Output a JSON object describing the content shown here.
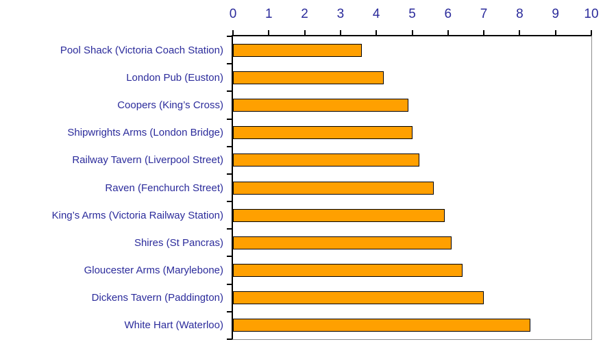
{
  "chart_data": {
    "type": "bar",
    "orientation": "horizontal",
    "title": "",
    "xlabel": "",
    "ylabel": "",
    "axis_position": "top",
    "grid": false,
    "legend": false,
    "xlim": [
      0,
      10
    ],
    "x_tick_labels": [
      "0",
      "1",
      "2",
      "3",
      "4",
      "5",
      "6",
      "7",
      "8",
      "9",
      "10"
    ],
    "categories": [
      "Pool Shack (Victoria Coach Station)",
      "London Pub (Euston)",
      "Coopers (King’s Cross)",
      "Shipwrights Arms (London Bridge)",
      "Railway Tavern (Liverpool Street)",
      "Raven (Fenchurch Street)",
      "King’s Arms (Victoria Railway Station)",
      "Shires (St Pancras)",
      "Gloucester Arms (Marylebone)",
      "Dickens Tavern (Paddington)",
      "White Hart (Waterloo)"
    ],
    "values": [
      3.6,
      4.2,
      4.9,
      5.0,
      5.2,
      5.6,
      5.9,
      6.1,
      6.4,
      7.0,
      8.3
    ],
    "colors": {
      "bar_fill": "#FFA000",
      "bar_border": "#000000",
      "text": "#2B2B9B",
      "axis_line": "#000000",
      "plot_border": "#8C8C8C"
    }
  }
}
